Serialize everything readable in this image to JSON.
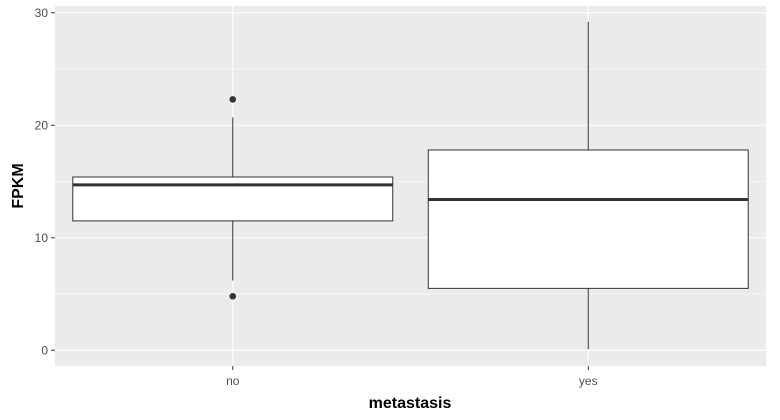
{
  "chart_data": {
    "type": "boxplot",
    "title": "",
    "xlabel": "metastasis",
    "ylabel": "FPKM",
    "categories": [
      "no",
      "yes"
    ],
    "ylim": [
      -1.4,
      30.6
    ],
    "yticks": [
      0,
      10,
      20,
      30
    ],
    "grid": true,
    "legend": "none",
    "boxes": [
      {
        "category": "no",
        "whisker_low": 6.2,
        "q1": 11.5,
        "median": 14.7,
        "q3": 15.4,
        "whisker_high": 20.7,
        "outliers": [
          22.3,
          4.8
        ]
      },
      {
        "category": "yes",
        "whisker_low": 0.1,
        "q1": 5.5,
        "median": 13.4,
        "q3": 17.8,
        "whisker_high": 29.2,
        "outliers": []
      }
    ],
    "colors": {
      "panel": "#ebebeb",
      "grid_major": "#ffffff",
      "box_fill": "#ffffff",
      "box_line": "#333333"
    }
  }
}
